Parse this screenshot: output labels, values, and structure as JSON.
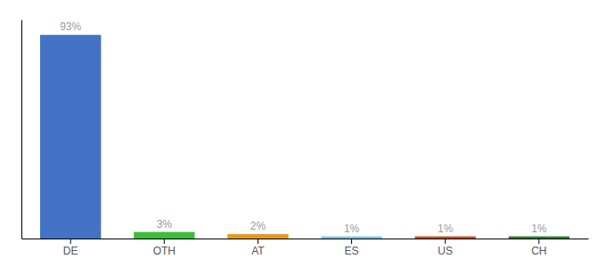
{
  "chart_data": {
    "type": "bar",
    "categories": [
      "DE",
      "OTH",
      "AT",
      "ES",
      "US",
      "CH"
    ],
    "values": [
      93,
      3,
      2,
      1,
      1,
      1
    ],
    "value_labels": [
      "93%",
      "3%",
      "2%",
      "1%",
      "1%",
      "1%"
    ],
    "data_labels": true,
    "colors": [
      "#4472C4",
      "#3DBF3D",
      "#E8961E",
      "#7EC8E3",
      "#C0512A",
      "#2E7D32"
    ],
    "ylim": [
      0,
      100
    ],
    "tick_labels": "x"
  }
}
